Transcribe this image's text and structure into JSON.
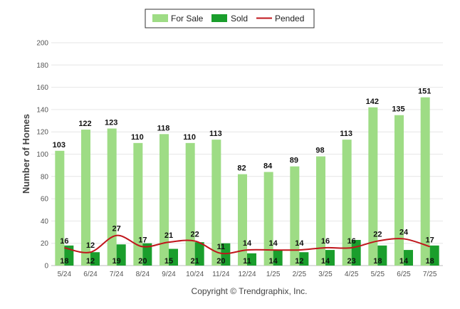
{
  "chart_data": {
    "type": "bar",
    "title": "",
    "xlabel": "",
    "ylabel": "Number of Homes",
    "ylim": [
      0,
      200
    ],
    "yticks": [
      0,
      20,
      40,
      60,
      80,
      100,
      120,
      140,
      160,
      180,
      200
    ],
    "grid": true,
    "legend_position": "top-center",
    "categories": [
      "5/24",
      "6/24",
      "7/24",
      "8/24",
      "9/24",
      "10/24",
      "11/24",
      "12/24",
      "1/25",
      "2/25",
      "3/25",
      "4/25",
      "5/25",
      "6/25",
      "7/25"
    ],
    "series": [
      {
        "name": "For Sale",
        "type": "bar",
        "color": "#9edc85",
        "values": [
          103,
          122,
          123,
          110,
          118,
          110,
          113,
          82,
          84,
          89,
          98,
          113,
          142,
          135,
          151
        ]
      },
      {
        "name": "Sold",
        "type": "bar",
        "color": "#1a9e2c",
        "values": [
          18,
          12,
          19,
          20,
          15,
          21,
          20,
          11,
          14,
          12,
          14,
          23,
          18,
          14,
          18
        ]
      },
      {
        "name": "Pended",
        "type": "line",
        "color": "#c0151b",
        "values": [
          16,
          12,
          27,
          17,
          21,
          22,
          11,
          14,
          14,
          14,
          16,
          16,
          22,
          24,
          17
        ]
      }
    ]
  },
  "footer": {
    "copyright": "Copyright © Trendgraphix, Inc."
  }
}
